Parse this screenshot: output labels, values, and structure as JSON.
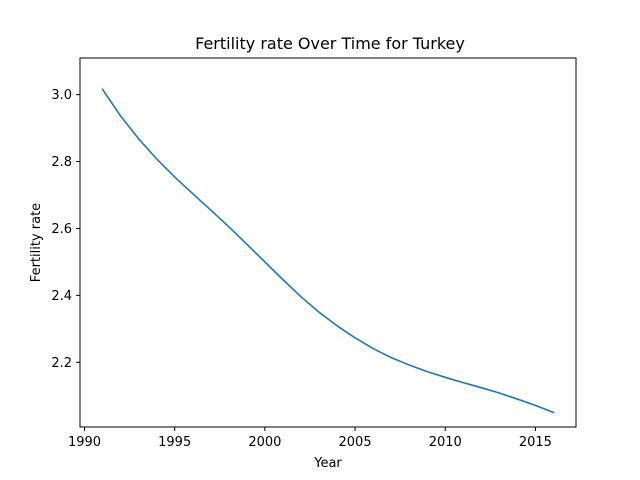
{
  "chart_data": {
    "type": "line",
    "title": "Fertility rate Over Time for Turkey",
    "xlabel": "Year",
    "ylabel": "Fertility rate",
    "xlim": [
      1989.75,
      2017.25
    ],
    "ylim": [
      2.0065,
      3.1095
    ],
    "grid": false,
    "x_ticks": [
      1990,
      1995,
      2000,
      2005,
      2010,
      2015
    ],
    "y_ticks": [
      2.2,
      2.4,
      2.6,
      2.8,
      3.0
    ],
    "x_tick_labels": [
      "1990",
      "1995",
      "2000",
      "2005",
      "2010",
      "2015"
    ],
    "y_tick_labels": [
      "2.2",
      "2.4",
      "2.6",
      "2.8",
      "3.0"
    ],
    "series": [
      {
        "color": "#1f77b4",
        "x": [
          1991,
          1992,
          1993,
          1994,
          1995,
          1996,
          1997,
          1998,
          1999,
          2000,
          2001,
          2002,
          2003,
          2004,
          2005,
          2006,
          2007,
          2008,
          2009,
          2010,
          2011,
          2012,
          2013,
          2014,
          2015,
          2016
        ],
        "values": [
          3.016,
          2.936,
          2.868,
          2.808,
          2.754,
          2.704,
          2.655,
          2.605,
          2.553,
          2.5,
          2.447,
          2.396,
          2.35,
          2.309,
          2.273,
          2.241,
          2.214,
          2.192,
          2.172,
          2.155,
          2.139,
          2.124,
          2.108,
          2.09,
          2.071,
          2.05
        ]
      }
    ]
  }
}
